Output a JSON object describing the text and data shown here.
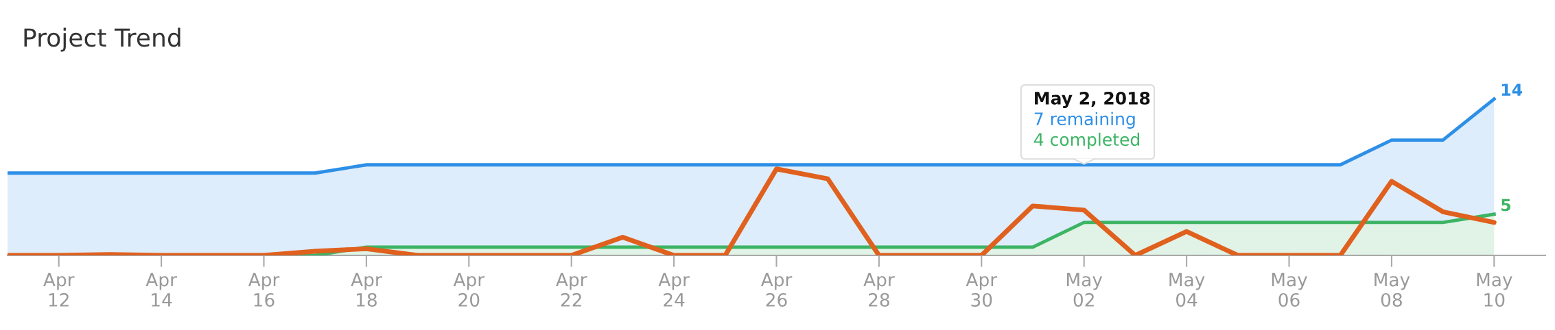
{
  "chart_data": {
    "type": "area",
    "title": "Project Trend",
    "stacked": true,
    "x": [
      "2018-04-11",
      "2018-04-12",
      "2018-04-13",
      "2018-04-14",
      "2018-04-15",
      "2018-04-16",
      "2018-04-17",
      "2018-04-18",
      "2018-04-19",
      "2018-04-20",
      "2018-04-21",
      "2018-04-22",
      "2018-04-23",
      "2018-04-24",
      "2018-04-25",
      "2018-04-26",
      "2018-04-27",
      "2018-04-28",
      "2018-04-29",
      "2018-04-30",
      "2018-05-01",
      "2018-05-02",
      "2018-05-03",
      "2018-05-04",
      "2018-05-05",
      "2018-05-06",
      "2018-05-07",
      "2018-05-08",
      "2018-05-09",
      "2018-05-10"
    ],
    "series": [
      {
        "color": "#3cb464",
        "values": [
          0,
          0,
          0,
          0,
          0,
          0,
          0,
          1,
          1,
          1,
          1,
          1,
          1,
          1,
          1,
          1,
          1,
          1,
          1,
          1,
          1,
          4,
          4,
          4,
          4,
          4,
          4,
          4,
          4,
          5
        ],
        "value_labels": [
          null,
          null,
          null,
          null,
          null,
          null,
          null,
          null,
          null,
          null,
          null,
          null,
          null,
          null,
          null,
          null,
          null,
          null,
          null,
          null,
          null,
          null,
          null,
          null,
          null,
          null,
          null,
          null,
          null,
          "5"
        ]
      },
      {
        "color": "#2d8fe6",
        "values": [
          10,
          10,
          10,
          10,
          10,
          10,
          10,
          10,
          10,
          10,
          10,
          10,
          10,
          10,
          10,
          10,
          10,
          10,
          10,
          10,
          10,
          7,
          7,
          7,
          7,
          7,
          7,
          10,
          10,
          14
        ],
        "value_labels": [
          null,
          null,
          null,
          null,
          null,
          null,
          null,
          null,
          null,
          null,
          null,
          null,
          null,
          null,
          null,
          null,
          null,
          null,
          null,
          null,
          null,
          null,
          null,
          null,
          null,
          null,
          null,
          null,
          null,
          "14"
        ]
      },
      {
        "type": "line",
        "color": "#e0601e",
        "values": [
          0,
          0,
          0.1,
          0,
          0,
          0,
          0.5,
          0.8,
          0,
          0,
          0,
          0,
          2.2,
          0,
          0,
          10.5,
          9.3,
          0,
          0,
          0,
          6.0,
          5.5,
          0,
          2.9,
          0,
          0,
          0,
          9.0,
          5.3,
          4.0
        ]
      }
    ],
    "xlim": [
      "2018-04-11",
      "2018-05-11"
    ],
    "xticks": [
      {
        "value": "2018-04-12",
        "label": "Apr\n12"
      },
      {
        "value": "2018-04-14",
        "label": "Apr\n14"
      },
      {
        "value": "2018-04-16",
        "label": "Apr\n16"
      },
      {
        "value": "2018-04-18",
        "label": "Apr\n18"
      },
      {
        "value": "2018-04-20",
        "label": "Apr\n20"
      },
      {
        "value": "2018-04-22",
        "label": "Apr\n22"
      },
      {
        "value": "2018-04-24",
        "label": "Apr\n24"
      },
      {
        "value": "2018-04-26",
        "label": "Apr\n26"
      },
      {
        "value": "2018-04-28",
        "label": "Apr\n28"
      },
      {
        "value": "2018-04-30",
        "label": "Apr\n30"
      },
      {
        "value": "2018-05-02",
        "label": "May\n02"
      },
      {
        "value": "2018-05-04",
        "label": "May\n04"
      },
      {
        "value": "2018-05-06",
        "label": "May\n06"
      },
      {
        "value": "2018-05-08",
        "label": "May\n08"
      },
      {
        "value": "2018-05-10",
        "label": "May\n10"
      }
    ],
    "tick_labels": "x",
    "grid": false,
    "annotations": [
      "May 2, 2018",
      "7 remaining",
      "4 completed"
    ]
  }
}
